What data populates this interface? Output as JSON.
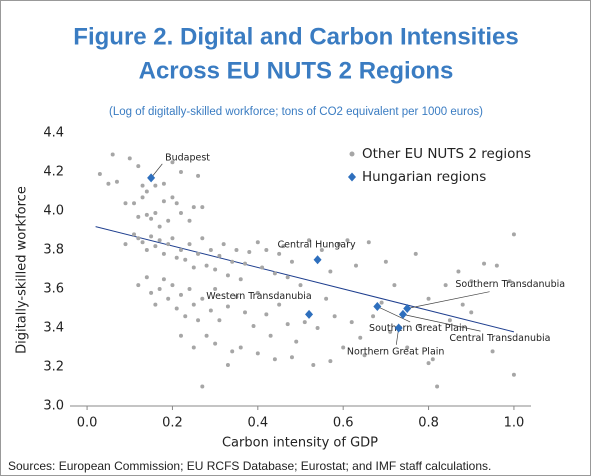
{
  "chart_data": {
    "type": "scatter",
    "title": "Figure 2. Digital and Carbon Intensities",
    "title_line2": "Across EU NUTS 2 Regions",
    "subtitle": "(Log of digitally-skilled workforce; tons of CO2 equivalent per 1000 euros)",
    "xlabel": "Carbon intensity of GDP",
    "ylabel": "Digitally-skilled workforce",
    "source": "Sources: European Commission; EU RCFS Database; Eurostat; and IMF staff calculations.",
    "xlim": [
      -0.04,
      1.04
    ],
    "ylim": [
      3.0,
      4.4
    ],
    "xticks": [
      {
        "value": 0,
        "label": "0.0"
      },
      0.2,
      0.4,
      0.6,
      0.8,
      {
        "value": 1,
        "label": "1.0"
      }
    ],
    "yticks": [
      {
        "value": 3,
        "label": "3.0"
      },
      3.2,
      3.4,
      3.6,
      3.8,
      {
        "value": 4,
        "label": "4.0"
      },
      4.2,
      4.4
    ],
    "legend": "top-right",
    "series": [
      {
        "name": "Other EU NUTS 2 regions",
        "color": "#a6a6a6",
        "marker": "circle",
        "x": [
          0.03,
          0.05,
          0.06,
          0.07,
          0.09,
          0.1,
          0.12,
          0.13,
          0.14,
          0.16,
          0.18,
          0.2,
          0.22,
          0.26,
          0.11,
          0.12,
          0.13,
          0.14,
          0.15,
          0.16,
          0.17,
          0.18,
          0.19,
          0.2,
          0.21,
          0.22,
          0.24,
          0.25,
          0.27,
          0.09,
          0.11,
          0.12,
          0.13,
          0.14,
          0.15,
          0.16,
          0.17,
          0.18,
          0.19,
          0.2,
          0.21,
          0.22,
          0.23,
          0.24,
          0.25,
          0.26,
          0.27,
          0.28,
          0.29,
          0.3,
          0.31,
          0.32,
          0.33,
          0.34,
          0.35,
          0.36,
          0.37,
          0.38,
          0.4,
          0.41,
          0.42,
          0.44,
          0.45,
          0.46,
          0.47,
          0.48,
          0.5,
          0.52,
          0.55,
          0.57,
          0.59,
          0.61,
          0.63,
          0.66,
          0.7,
          0.72,
          0.77,
          0.8,
          0.84,
          0.87,
          0.9,
          0.93,
          0.96,
          1.0,
          0.99,
          0.12,
          0.14,
          0.15,
          0.16,
          0.17,
          0.18,
          0.19,
          0.2,
          0.21,
          0.22,
          0.23,
          0.24,
          0.25,
          0.26,
          0.27,
          0.29,
          0.3,
          0.31,
          0.33,
          0.35,
          0.37,
          0.39,
          0.4,
          0.42,
          0.43,
          0.45,
          0.47,
          0.49,
          0.51,
          0.54,
          0.56,
          0.58,
          0.6,
          0.62,
          0.64,
          0.67,
          0.69,
          0.71,
          0.75,
          0.78,
          0.8,
          0.82,
          0.85,
          0.88,
          0.9,
          0.95,
          1.0,
          0.27,
          0.33,
          0.36,
          0.4,
          0.44,
          0.48,
          0.53,
          0.57,
          0.65,
          0.81,
          0.22,
          0.28,
          0.25,
          0.3,
          0.34
        ],
        "y": [
          4.19,
          4.14,
          4.29,
          4.15,
          4.04,
          4.27,
          4.23,
          4.13,
          4.1,
          4.13,
          4.14,
          4.25,
          4.2,
          4.18,
          4.04,
          3.97,
          4.07,
          3.98,
          3.96,
          3.99,
          3.92,
          4.05,
          3.95,
          4.07,
          4.04,
          3.99,
          3.95,
          4.02,
          4.02,
          3.83,
          3.88,
          3.86,
          3.84,
          3.8,
          3.87,
          3.82,
          3.85,
          3.78,
          3.83,
          3.86,
          3.76,
          3.8,
          3.75,
          3.83,
          3.71,
          3.78,
          3.86,
          3.72,
          3.8,
          3.7,
          3.77,
          3.83,
          3.67,
          3.74,
          3.8,
          3.65,
          3.73,
          3.79,
          3.84,
          3.71,
          3.8,
          3.68,
          3.78,
          3.82,
          3.66,
          3.74,
          3.62,
          3.85,
          3.8,
          3.69,
          3.83,
          3.85,
          3.72,
          3.84,
          3.74,
          3.62,
          3.78,
          3.55,
          3.62,
          3.69,
          3.64,
          3.73,
          3.72,
          3.88,
          3.64,
          3.62,
          3.66,
          3.58,
          3.52,
          3.6,
          3.65,
          3.55,
          3.62,
          3.5,
          3.57,
          3.46,
          3.6,
          3.52,
          3.44,
          3.55,
          3.49,
          3.6,
          3.44,
          3.51,
          3.56,
          3.48,
          3.41,
          3.58,
          3.47,
          3.36,
          3.52,
          3.42,
          3.33,
          3.43,
          3.4,
          3.55,
          3.46,
          3.3,
          3.43,
          3.35,
          3.46,
          3.53,
          3.38,
          3.3,
          3.41,
          3.22,
          3.1,
          3.44,
          3.52,
          3.48,
          3.28,
          3.16,
          3.1,
          3.21,
          3.3,
          3.27,
          3.24,
          3.25,
          3.21,
          3.23,
          3.26,
          3.24,
          3.36,
          3.36,
          3.3,
          3.32,
          3.28
        ]
      },
      {
        "name": "Hungarian regions",
        "color": "#2e6fbd",
        "marker": "diamond",
        "x": [
          0.15,
          0.54,
          0.52,
          0.68,
          0.75,
          0.74,
          0.73
        ],
        "y": [
          4.17,
          3.75,
          3.47,
          3.51,
          3.5,
          3.47,
          3.4
        ],
        "labels": [
          "Budapest",
          "Central Hungary",
          "Western Transdanubia",
          "Southern Great Plain",
          "Southern Transdanubia",
          "Central Transdanubia",
          "Northern Great Plain"
        ]
      }
    ],
    "trendline": {
      "color": "#1f3f8f",
      "x": [
        0.02,
        1.0
      ],
      "y": [
        3.92,
        3.38
      ]
    }
  }
}
